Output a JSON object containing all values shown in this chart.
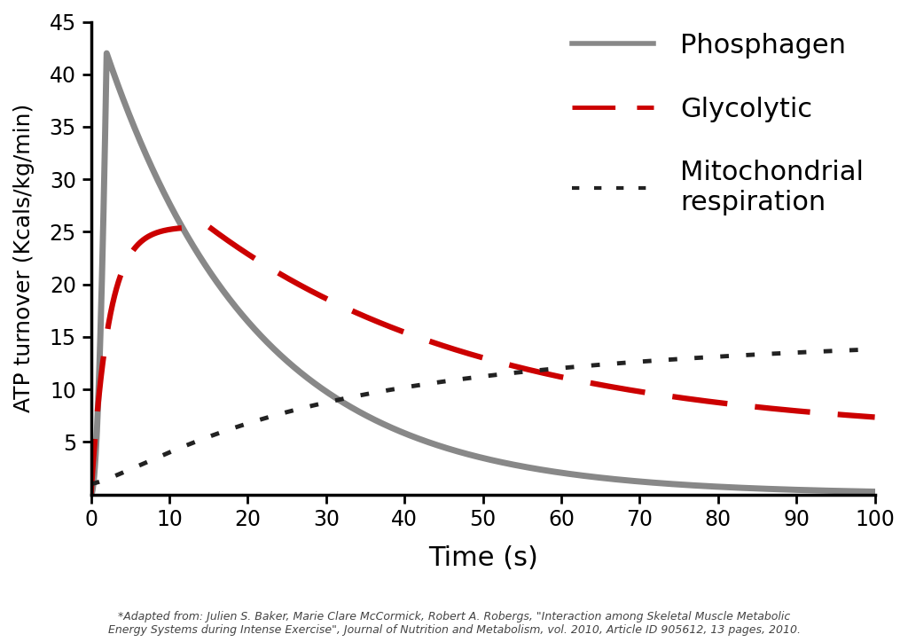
{
  "title": "",
  "xlabel": "Time (s)",
  "ylabel": "ATP turnover (Kcals/kg/min)",
  "xlim": [
    0,
    100
  ],
  "ylim": [
    0,
    45
  ],
  "xticks": [
    0,
    10,
    20,
    30,
    40,
    50,
    60,
    70,
    80,
    90,
    100
  ],
  "yticks": [
    5,
    10,
    15,
    20,
    25,
    30,
    35,
    40,
    45
  ],
  "phosphagen_color": "#888888",
  "glycolytic_color": "#cc0000",
  "mito_color": "#222222",
  "caption": "*Adapted from: Julien S. Baker, Marie Clare McCormick, Robert A. Robergs, \"Interaction among Skeletal Muscle Metabolic\nEnergy Systems during Intense Exercise\", Journal of Nutrition and Metabolism, vol. 2010, Article ID 905612, 13 pages, 2010.",
  "legend_labels": [
    "Phosphagen",
    "Glycolytic",
    "Mitochondrial\nrespiration"
  ],
  "background_color": "#ffffff",
  "linewidth_phosphagen": 5.0,
  "linewidth_glycolytic": 4.5,
  "linewidth_mito": 3.5,
  "figsize": [
    10.24,
    7.24
  ],
  "dpi": 100
}
